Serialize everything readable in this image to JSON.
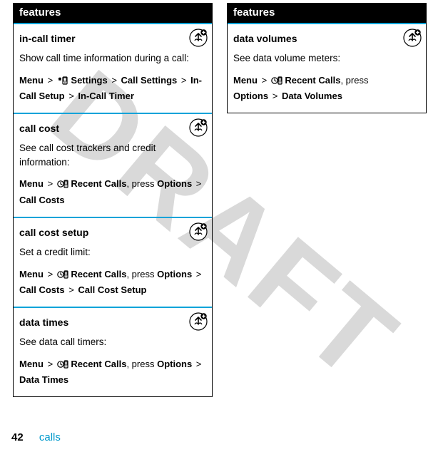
{
  "watermark": "DRAFT",
  "footer": {
    "page": "42",
    "section": "calls"
  },
  "header": "features",
  "left": [
    {
      "title": "in-call timer",
      "desc": "Show call time information during a call:",
      "path": [
        {
          "t": "bold",
          "v": "Menu"
        },
        {
          "t": "gt"
        },
        {
          "t": "icon",
          "v": "settings"
        },
        {
          "t": "bold",
          "v": "Settings"
        },
        {
          "t": "gt"
        },
        {
          "t": "bold",
          "v": "Call Settings"
        },
        {
          "t": "gt"
        },
        {
          "t": "bold",
          "v": "In-Call Setup"
        },
        {
          "t": "gt"
        },
        {
          "t": "bold",
          "v": "In-Call Timer"
        }
      ],
      "badge": true
    },
    {
      "title": "call cost",
      "desc": "See call cost trackers and credit information:",
      "path": [
        {
          "t": "bold",
          "v": "Menu"
        },
        {
          "t": "gt"
        },
        {
          "t": "icon",
          "v": "recent"
        },
        {
          "t": "bold",
          "v": "Recent Calls"
        },
        {
          "t": "plain",
          "v": ", press "
        },
        {
          "t": "bold",
          "v": "Options"
        },
        {
          "t": "gt"
        },
        {
          "t": "bold",
          "v": "Call Costs"
        }
      ],
      "badge": true
    },
    {
      "title": "call cost setup",
      "desc": "Set a credit limit:",
      "path": [
        {
          "t": "bold",
          "v": "Menu"
        },
        {
          "t": "gt"
        },
        {
          "t": "icon",
          "v": "recent"
        },
        {
          "t": "bold",
          "v": "Recent Calls"
        },
        {
          "t": "plain",
          "v": ", press "
        },
        {
          "t": "bold",
          "v": "Options"
        },
        {
          "t": "gt"
        },
        {
          "t": "bold",
          "v": "Call Costs"
        },
        {
          "t": "gt"
        },
        {
          "t": "bold",
          "v": "Call Cost Setup"
        }
      ],
      "badge": true
    },
    {
      "title": "data times",
      "desc": "See data call timers:",
      "path": [
        {
          "t": "bold",
          "v": "Menu"
        },
        {
          "t": "gt"
        },
        {
          "t": "icon",
          "v": "recent"
        },
        {
          "t": "bold",
          "v": "Recent Calls"
        },
        {
          "t": "plain",
          "v": ", press "
        },
        {
          "t": "bold",
          "v": "Options"
        },
        {
          "t": "gt"
        },
        {
          "t": "bold",
          "v": "Data Times"
        }
      ],
      "badge": true
    }
  ],
  "right": [
    {
      "title": "data volumes",
      "desc": "See data volume meters:",
      "path": [
        {
          "t": "bold",
          "v": "Menu"
        },
        {
          "t": "gt"
        },
        {
          "t": "icon",
          "v": "recent"
        },
        {
          "t": "bold",
          "v": "Recent Calls"
        },
        {
          "t": "plain",
          "v": ", press "
        },
        {
          "t": "br"
        },
        {
          "t": "bold",
          "v": "Options"
        },
        {
          "t": "gt"
        },
        {
          "t": "bold",
          "v": "Data Volumes"
        }
      ],
      "badge": true
    }
  ]
}
